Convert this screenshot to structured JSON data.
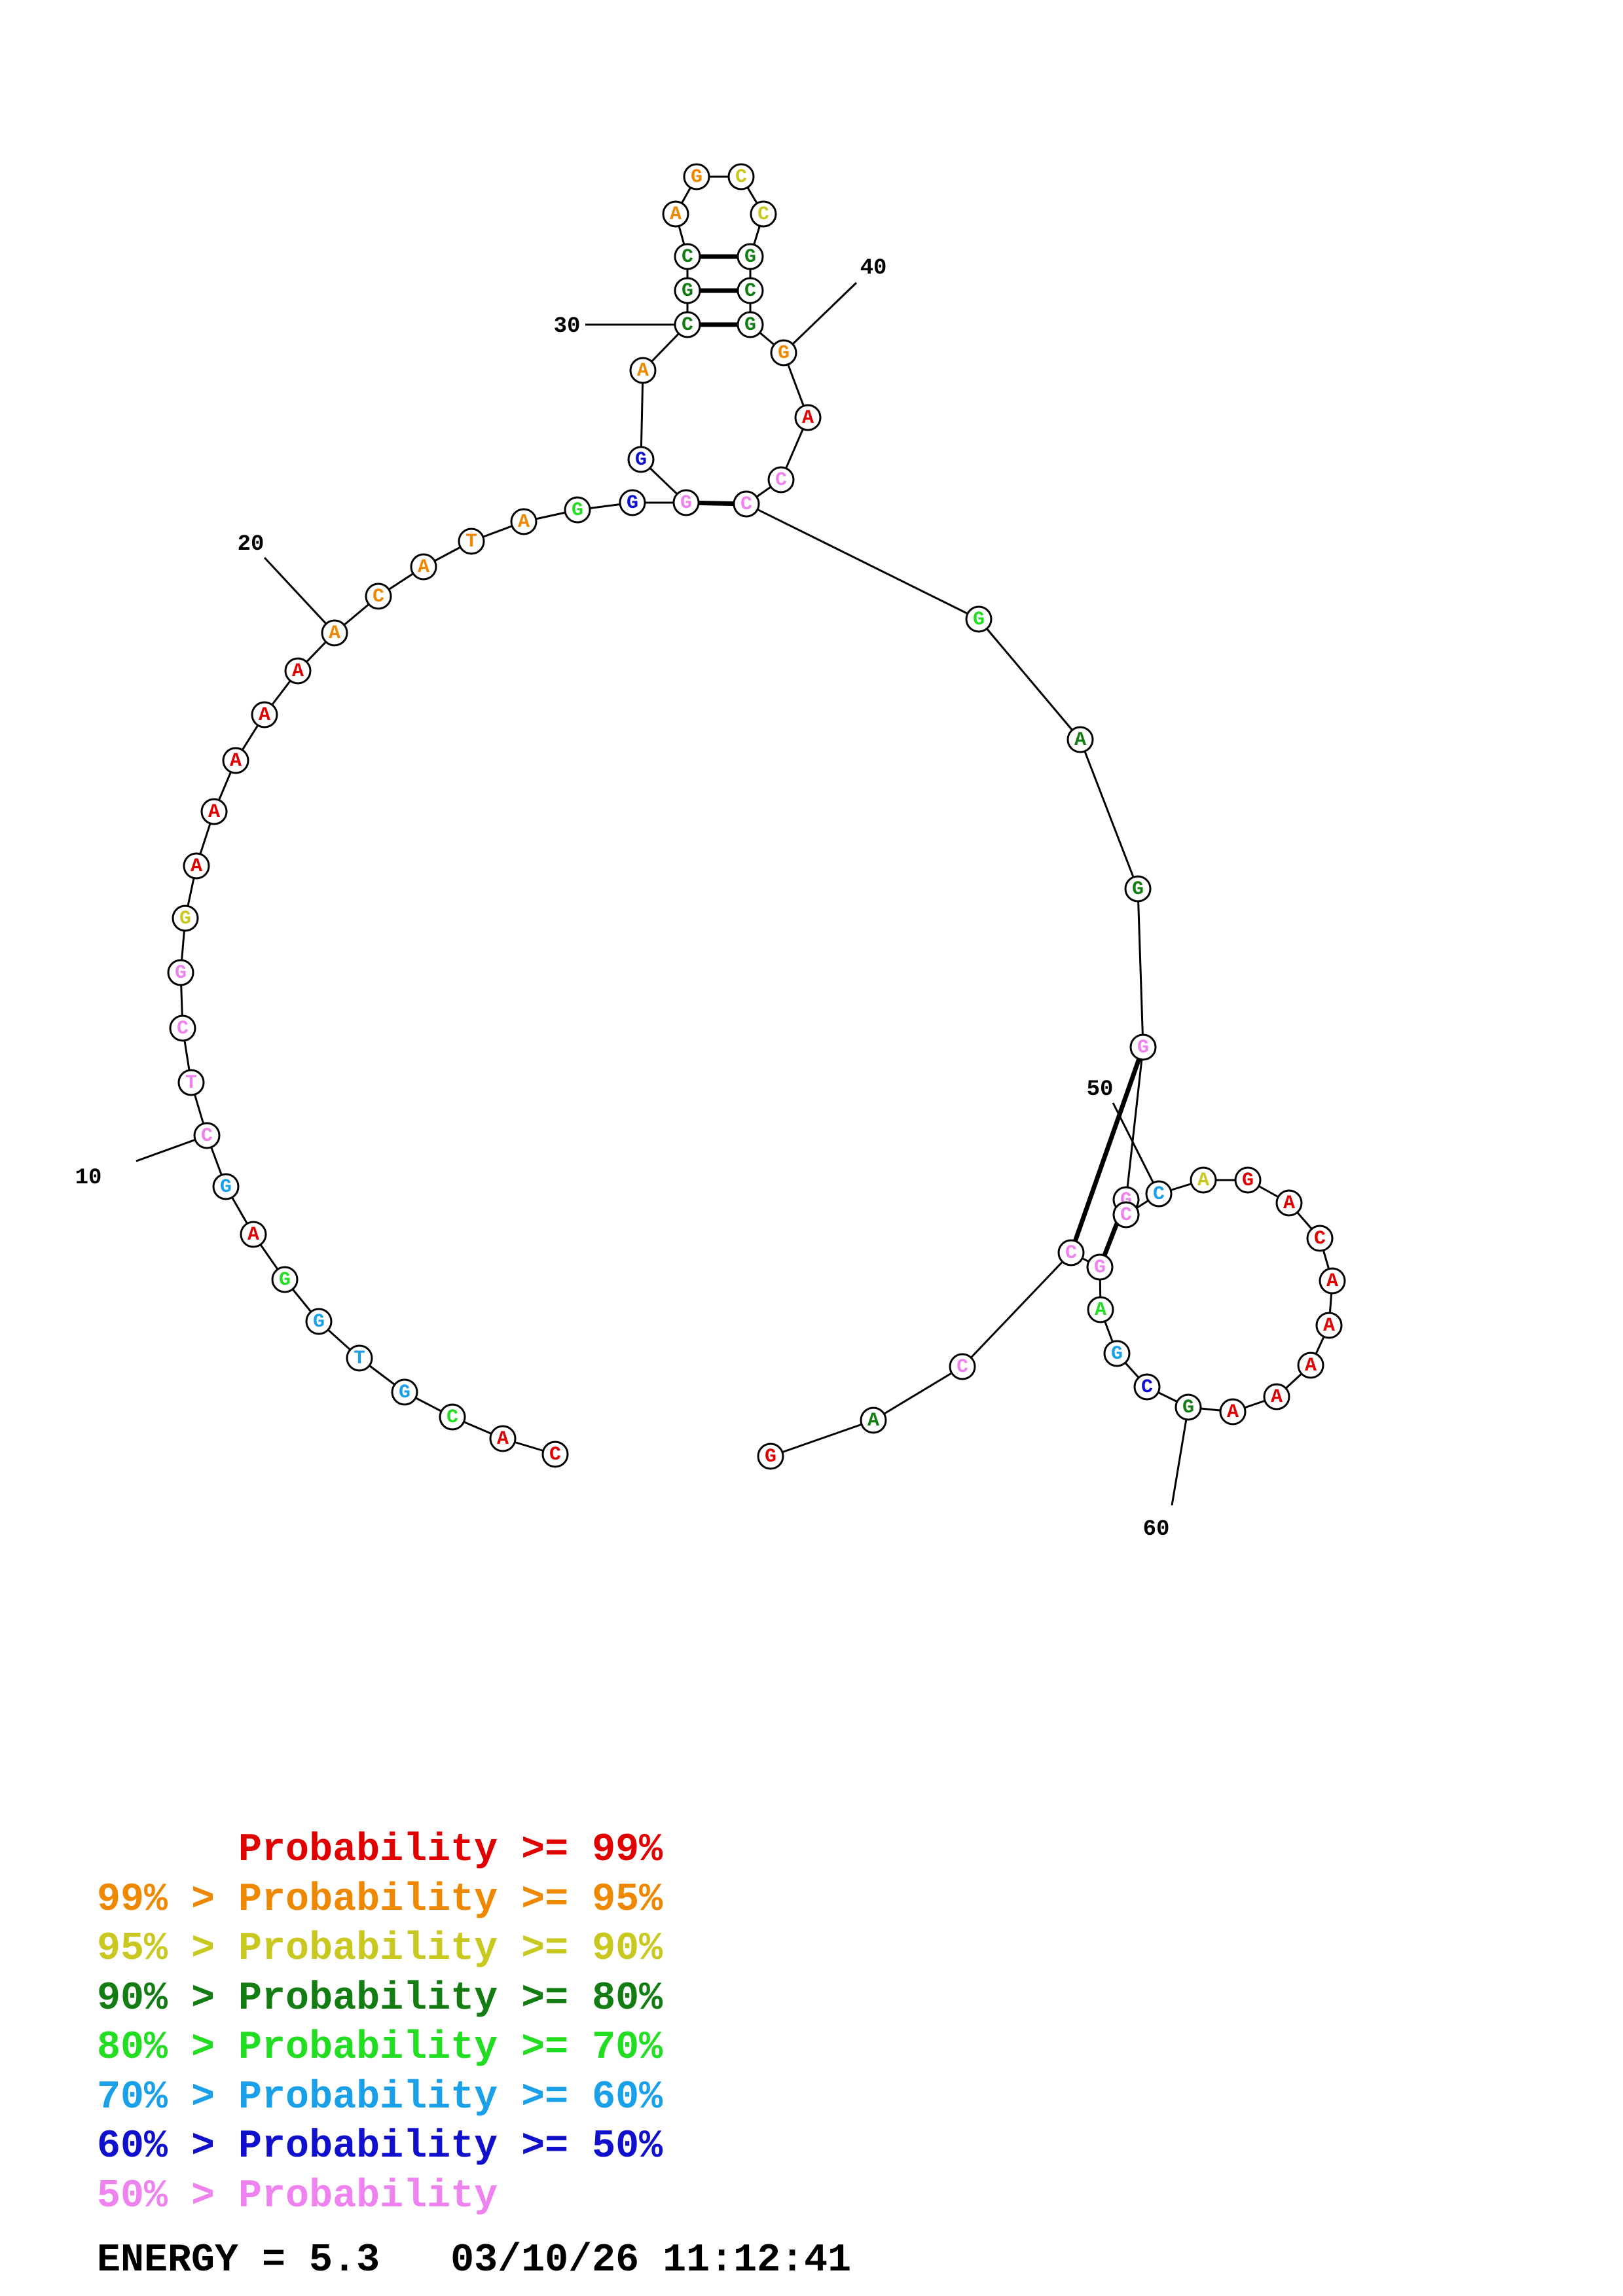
{
  "nucleotides": [
    {
      "pos": 1,
      "base": "C",
      "color": "#e00000"
    },
    {
      "pos": 2,
      "base": "A",
      "color": "#e00000"
    },
    {
      "pos": 3,
      "base": "C",
      "color": "#22dd22"
    },
    {
      "pos": 4,
      "base": "G",
      "color": "#1aa0e8"
    },
    {
      "pos": 5,
      "base": "T",
      "color": "#1aa0e8"
    },
    {
      "pos": 6,
      "base": "G",
      "color": "#1aa0e8"
    },
    {
      "pos": 7,
      "base": "G",
      "color": "#22dd22"
    },
    {
      "pos": 8,
      "base": "A",
      "color": "#e00000"
    },
    {
      "pos": 9,
      "base": "G",
      "color": "#1aa0e8"
    },
    {
      "pos": 10,
      "base": "C",
      "color": "#ee82ee"
    },
    {
      "pos": 11,
      "base": "T",
      "color": "#ee82ee"
    },
    {
      "pos": 12,
      "base": "C",
      "color": "#ee82ee"
    },
    {
      "pos": 13,
      "base": "G",
      "color": "#ee82ee"
    },
    {
      "pos": 14,
      "base": "G",
      "color": "#c8c820"
    },
    {
      "pos": 15,
      "base": "A",
      "color": "#e00000"
    },
    {
      "pos": 16,
      "base": "A",
      "color": "#e00000"
    },
    {
      "pos": 17,
      "base": "A",
      "color": "#e00000"
    },
    {
      "pos": 18,
      "base": "A",
      "color": "#e00000"
    },
    {
      "pos": 19,
      "base": "A",
      "color": "#e00000"
    },
    {
      "pos": 20,
      "base": "A",
      "color": "#ee8800"
    },
    {
      "pos": 21,
      "base": "C",
      "color": "#ee8800"
    },
    {
      "pos": 22,
      "base": "A",
      "color": "#ee8800"
    },
    {
      "pos": 23,
      "base": "T",
      "color": "#ee8800"
    },
    {
      "pos": 24,
      "base": "A",
      "color": "#ee8800"
    },
    {
      "pos": 25,
      "base": "G",
      "color": "#22dd22"
    },
    {
      "pos": 26,
      "base": "G",
      "color": "#1010cc"
    },
    {
      "pos": 27,
      "base": "G",
      "color": "#ee82ee"
    },
    {
      "pos": 28,
      "base": "G",
      "color": "#1010cc"
    },
    {
      "pos": 29,
      "base": "A",
      "color": "#ee8800"
    },
    {
      "pos": 30,
      "base": "C",
      "color": "#137c13"
    },
    {
      "pos": 31,
      "base": "G",
      "color": "#137c13"
    },
    {
      "pos": 32,
      "base": "C",
      "color": "#137c13"
    },
    {
      "pos": 33,
      "base": "A",
      "color": "#ee8800"
    },
    {
      "pos": 34,
      "base": "G",
      "color": "#ee8800"
    },
    {
      "pos": 35,
      "base": "C",
      "color": "#c8c820"
    },
    {
      "pos": 36,
      "base": "C",
      "color": "#c8c820"
    },
    {
      "pos": 37,
      "base": "G",
      "color": "#137c13"
    },
    {
      "pos": 38,
      "base": "C",
      "color": "#137c13"
    },
    {
      "pos": 39,
      "base": "G",
      "color": "#137c13"
    },
    {
      "pos": 40,
      "base": "G",
      "color": "#ee8800"
    },
    {
      "pos": 41,
      "base": "A",
      "color": "#e00000"
    },
    {
      "pos": 42,
      "base": "C",
      "color": "#ee82ee"
    },
    {
      "pos": 43,
      "base": "C",
      "color": "#ee82ee"
    },
    {
      "pos": 44,
      "base": "G",
      "color": "#22dd22"
    },
    {
      "pos": 45,
      "base": "A",
      "color": "#137c13"
    },
    {
      "pos": 46,
      "base": "G",
      "color": "#137c13"
    },
    {
      "pos": 47,
      "base": "G",
      "color": "#ee82ee"
    },
    {
      "pos": 48,
      "base": "G",
      "color": "#ee82ee"
    },
    {
      "pos": 49,
      "base": "C",
      "color": "#ee82ee"
    },
    {
      "pos": 50,
      "base": "C",
      "color": "#1aa0e8"
    },
    {
      "pos": 51,
      "base": "A",
      "color": "#c8c820"
    },
    {
      "pos": 52,
      "base": "G",
      "color": "#e00000"
    },
    {
      "pos": 53,
      "base": "A",
      "color": "#e00000"
    },
    {
      "pos": 54,
      "base": "C",
      "color": "#e00000"
    },
    {
      "pos": 55,
      "base": "A",
      "color": "#e00000"
    },
    {
      "pos": 56,
      "base": "A",
      "color": "#e00000"
    },
    {
      "pos": 57,
      "base": "A",
      "color": "#e00000"
    },
    {
      "pos": 58,
      "base": "A",
      "color": "#e00000"
    },
    {
      "pos": 59,
      "base": "A",
      "color": "#e00000"
    },
    {
      "pos": 60,
      "base": "G",
      "color": "#137c13"
    },
    {
      "pos": 61,
      "base": "C",
      "color": "#1010cc"
    },
    {
      "pos": 62,
      "base": "G",
      "color": "#1aa0e8"
    },
    {
      "pos": 63,
      "base": "A",
      "color": "#22dd22"
    },
    {
      "pos": 64,
      "base": "G",
      "color": "#ee82ee"
    },
    {
      "pos": 65,
      "base": "C",
      "color": "#ee82ee"
    },
    {
      "pos": 66,
      "base": "C",
      "color": "#ee82ee"
    },
    {
      "pos": 67,
      "base": "A",
      "color": "#137c13"
    },
    {
      "pos": 68,
      "base": "G",
      "color": "#e00000"
    }
  ],
  "base_pairs": [
    [
      27,
      43
    ],
    [
      30,
      39
    ],
    [
      31,
      38
    ],
    [
      32,
      37
    ],
    [
      47,
      65
    ],
    [
      48,
      64
    ]
  ],
  "position_labels": [
    {
      "pos": 10,
      "text": "10"
    },
    {
      "pos": 20,
      "text": "20"
    },
    {
      "pos": 30,
      "text": "30"
    },
    {
      "pos": 40,
      "text": "40"
    },
    {
      "pos": 50,
      "text": "50"
    },
    {
      "pos": 60,
      "text": "60"
    }
  ],
  "legend": [
    {
      "prefix": "",
      "text": "Probability >= 99%",
      "color": "#e00000"
    },
    {
      "prefix": "99% > ",
      "text": "Probability >= 95%",
      "color": "#ee8800"
    },
    {
      "prefix": "95% > ",
      "text": "Probability >= 90%",
      "color": "#c8c820"
    },
    {
      "prefix": "90% > ",
      "text": "Probability >= 80%",
      "color": "#137c13"
    },
    {
      "prefix": "80% > ",
      "text": "Probability >= 70%",
      "color": "#22dd22"
    },
    {
      "prefix": "70% > ",
      "text": "Probability >= 60%",
      "color": "#1aa0e8"
    },
    {
      "prefix": "60% > ",
      "text": "Probability >= 50%",
      "color": "#1010cc"
    },
    {
      "prefix": "50% > ",
      "text": "Probability",
      "color": "#ee82ee"
    }
  ],
  "energy_line": "ENERGY = 5.3   03/10/26 11:12:41"
}
